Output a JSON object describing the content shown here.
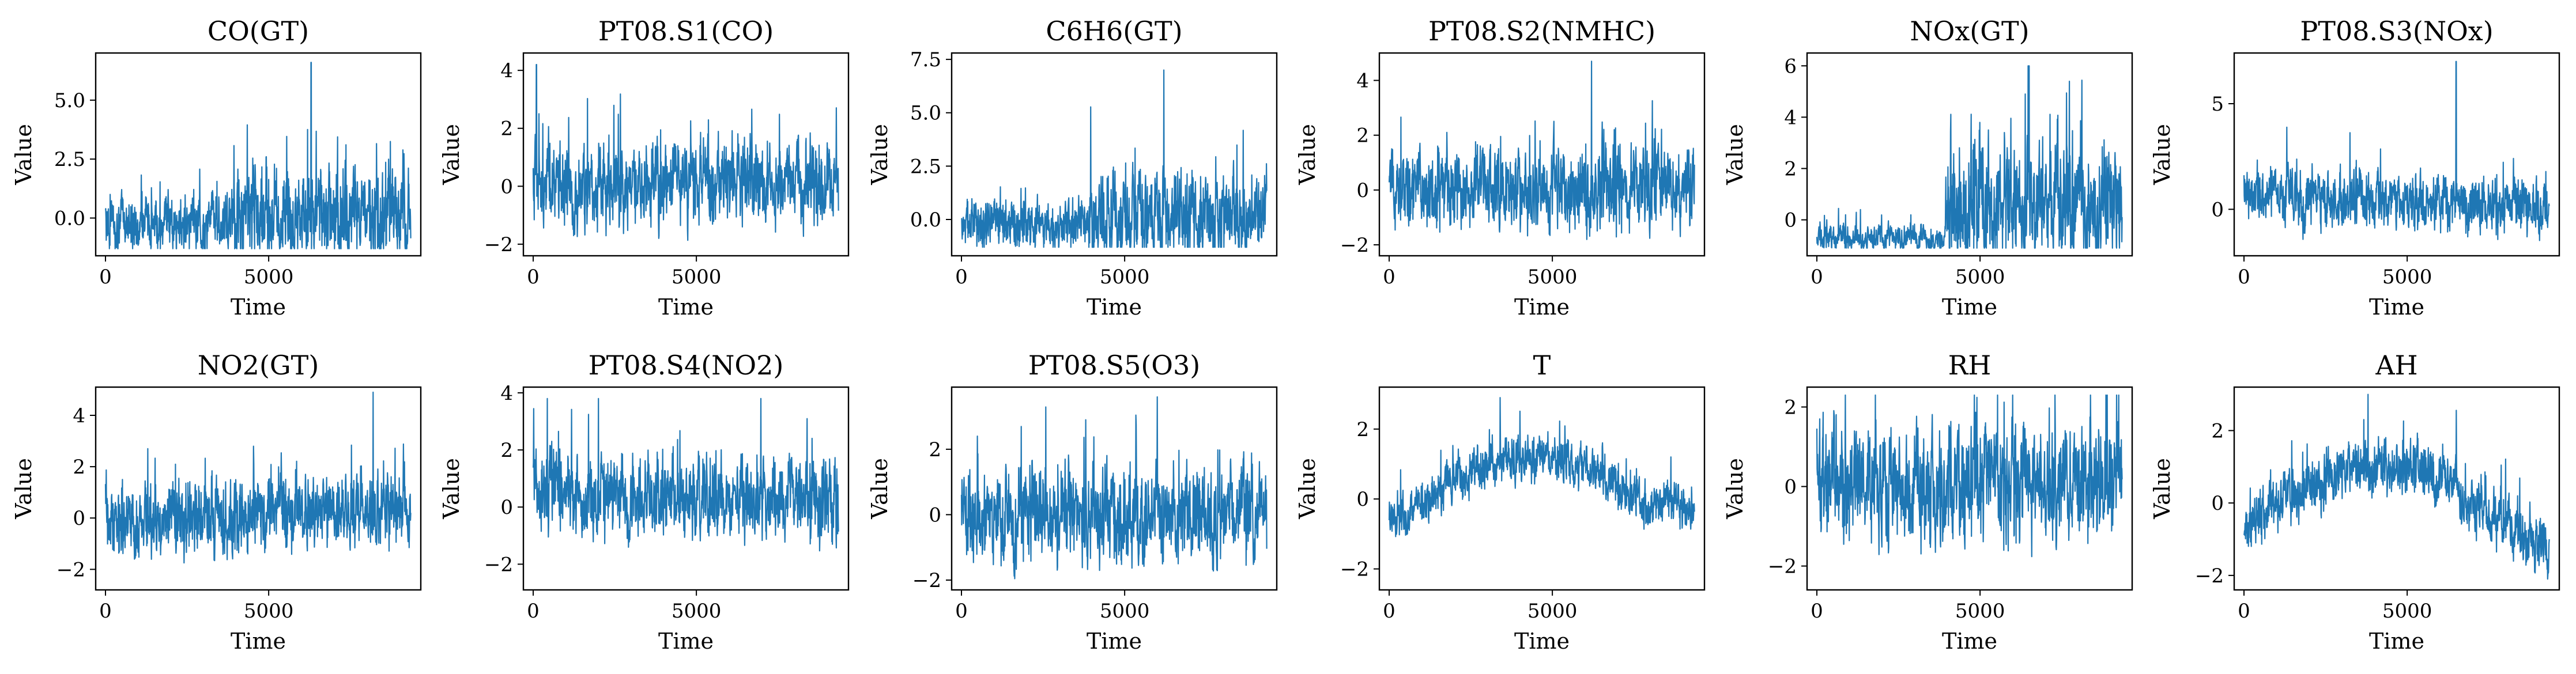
{
  "figure": {
    "line_color": "#1f77b4",
    "background": "#ffffff"
  },
  "chart_data": [
    {
      "type": "line",
      "title": "CO(GT)",
      "xlabel": "Time",
      "ylabel": "Value",
      "xlim": [
        -300,
        9660
      ],
      "ylim": [
        -1.6,
        7.0
      ],
      "xticks": [
        0,
        5000
      ],
      "xtick_labels": [
        "0",
        "5000"
      ],
      "yticks": [
        0.0,
        2.5,
        5.0
      ],
      "ytick_labels": [
        "0.0",
        "2.5",
        "5.0"
      ],
      "floor": -1.3,
      "peak": 6.6,
      "peak_at": 6300,
      "pattern": "co",
      "mean": 0.0
    },
    {
      "type": "line",
      "title": "PT08.S1(CO)",
      "xlabel": "Time",
      "ylabel": "Value",
      "xlim": [
        -300,
        9660
      ],
      "ylim": [
        -2.4,
        4.6
      ],
      "xticks": [
        0,
        5000
      ],
      "xtick_labels": [
        "0",
        "5000"
      ],
      "yticks": [
        -2,
        0,
        2,
        4
      ],
      "ytick_labels": [
        "−2",
        "0",
        "2",
        "4"
      ],
      "floor": -2.1,
      "peak": 4.2,
      "peak_at": 100,
      "pattern": "noise",
      "mean": 0.0
    },
    {
      "type": "line",
      "title": "C6H6(GT)",
      "xlabel": "Time",
      "ylabel": "Value",
      "xlim": [
        -300,
        9660
      ],
      "ylim": [
        -1.7,
        7.8
      ],
      "xticks": [
        0,
        5000
      ],
      "xtick_labels": [
        "0",
        "5000"
      ],
      "yticks": [
        0.0,
        2.5,
        5.0,
        7.5
      ],
      "ytick_labels": [
        "0.0",
        "2.5",
        "5.0",
        "7.5"
      ],
      "floor": -1.3,
      "peak": 7.0,
      "peak_at": 6200,
      "pattern": "co",
      "mean": -0.3
    },
    {
      "type": "line",
      "title": "PT08.S2(NMHC)",
      "xlabel": "Time",
      "ylabel": "Value",
      "xlim": [
        -300,
        9660
      ],
      "ylim": [
        -2.4,
        5.0
      ],
      "xticks": [
        0,
        5000
      ],
      "xtick_labels": [
        "0",
        "5000"
      ],
      "yticks": [
        -2,
        0,
        2,
        4
      ],
      "ytick_labels": [
        "−2",
        "0",
        "2",
        "4"
      ],
      "floor": -2.0,
      "peak": 4.7,
      "peak_at": 6200,
      "pattern": "noise",
      "mean": 0.0
    },
    {
      "type": "line",
      "title": "NOx(GT)",
      "xlabel": "Time",
      "ylabel": "Value",
      "xlim": [
        -300,
        9660
      ],
      "ylim": [
        -1.4,
        6.5
      ],
      "xticks": [
        0,
        5000
      ],
      "xtick_labels": [
        "0",
        "5000"
      ],
      "yticks": [
        0,
        2,
        4,
        6
      ],
      "ytick_labels": [
        "0",
        "2",
        "4",
        "6"
      ],
      "floor": -1.1,
      "peak": 6.0,
      "peak_at": 6500,
      "pattern": "nox",
      "mean": 0.0
    },
    {
      "type": "line",
      "title": "PT08.S3(NOx)",
      "xlabel": "Time",
      "ylabel": "Value",
      "xlim": [
        -300,
        9660
      ],
      "ylim": [
        -2.2,
        7.4
      ],
      "xticks": [
        0,
        5000
      ],
      "xtick_labels": [
        "0",
        "5000"
      ],
      "yticks": [
        0,
        5
      ],
      "ytick_labels": [
        "0",
        "5"
      ],
      "floor": -1.9,
      "peak": 7.0,
      "peak_at": 6500,
      "pattern": "s3",
      "mean": 0.0
    },
    {
      "type": "line",
      "title": "NO2(GT)",
      "xlabel": "Time",
      "ylabel": "Value",
      "xlim": [
        -300,
        9660
      ],
      "ylim": [
        -2.8,
        5.1
      ],
      "xticks": [
        0,
        5000
      ],
      "xtick_labels": [
        "0",
        "5000"
      ],
      "yticks": [
        -2,
        0,
        2,
        4
      ],
      "ytick_labels": [
        "−2",
        "0",
        "2",
        "4"
      ],
      "floor": -2.3,
      "peak": 4.9,
      "peak_at": 8200,
      "pattern": "no2",
      "mean": 0.0
    },
    {
      "type": "line",
      "title": "PT08.S4(NO2)",
      "xlabel": "Time",
      "ylabel": "Value",
      "xlim": [
        -300,
        9660
      ],
      "ylim": [
        -2.9,
        4.2
      ],
      "xticks": [
        0,
        5000
      ],
      "xtick_labels": [
        "0",
        "5000"
      ],
      "yticks": [
        -2,
        0,
        2,
        4
      ],
      "ytick_labels": [
        "−2",
        "0",
        "2",
        "4"
      ],
      "floor": -2.6,
      "peak": 3.8,
      "peak_at": 2000,
      "pattern": "s4",
      "mean": 0.0
    },
    {
      "type": "line",
      "title": "PT08.S5(O3)",
      "xlabel": "Time",
      "ylabel": "Value",
      "xlim": [
        -300,
        9660
      ],
      "ylim": [
        -2.3,
        3.9
      ],
      "xticks": [
        0,
        5000
      ],
      "xtick_labels": [
        "0",
        "5000"
      ],
      "yticks": [
        -2,
        0,
        2
      ],
      "ytick_labels": [
        "−2",
        "0",
        "2"
      ],
      "floor": -2.0,
      "peak": 3.6,
      "peak_at": 6000,
      "pattern": "noise",
      "mean": 0.0
    },
    {
      "type": "line",
      "title": "T",
      "xlabel": "Time",
      "ylabel": "Value",
      "xlim": [
        -300,
        9660
      ],
      "ylim": [
        -2.6,
        3.2
      ],
      "xticks": [
        0,
        5000
      ],
      "xtick_labels": [
        "0",
        "5000"
      ],
      "yticks": [
        -2,
        0,
        2
      ],
      "ytick_labels": [
        "−2",
        "0",
        "2"
      ],
      "floor": -2.3,
      "peak": 2.9,
      "peak_at": 3400,
      "pattern": "temp",
      "mean": 0.0
    },
    {
      "type": "line",
      "title": "RH",
      "xlabel": "Time",
      "ylabel": "Value",
      "xlim": [
        -300,
        9660
      ],
      "ylim": [
        -2.6,
        2.5
      ],
      "xticks": [
        0,
        5000
      ],
      "xtick_labels": [
        "0",
        "5000"
      ],
      "yticks": [
        -2,
        0,
        2
      ],
      "ytick_labels": [
        "−2",
        "0",
        "2"
      ],
      "floor": -2.4,
      "peak": 2.3,
      "peak_at": 6000,
      "pattern": "rh",
      "mean": 0.0
    },
    {
      "type": "line",
      "title": "AH",
      "xlabel": "Time",
      "ylabel": "Value",
      "xlim": [
        -300,
        9660
      ],
      "ylim": [
        -2.4,
        3.2
      ],
      "xticks": [
        0,
        5000
      ],
      "xtick_labels": [
        "0",
        "5000"
      ],
      "yticks": [
        -2,
        0,
        2
      ],
      "ytick_labels": [
        "−2",
        "0",
        "2"
      ],
      "floor": -2.1,
      "peak": 3.0,
      "peak_at": 3800,
      "pattern": "ah",
      "mean": 0.0
    }
  ]
}
